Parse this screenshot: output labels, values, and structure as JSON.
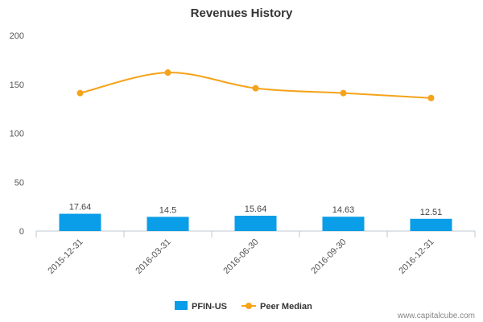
{
  "chart_data": {
    "type": "bar",
    "title": "Revenues History",
    "categories": [
      "2015-12-31",
      "2016-03-31",
      "2016-06-30",
      "2016-09-30",
      "2016-12-31"
    ],
    "series": [
      {
        "name": "PFIN-US",
        "type": "bar",
        "color": "#0a9de8",
        "values": [
          17.64,
          14.5,
          15.64,
          14.63,
          12.51
        ],
        "data_labels": [
          "17.64",
          "14.5",
          "15.64",
          "14.63",
          "12.51"
        ]
      },
      {
        "name": "Peer Median",
        "type": "line",
        "color": "#f5a31a",
        "values": [
          141,
          162,
          146,
          141,
          136
        ]
      }
    ],
    "ylim": [
      0,
      200
    ],
    "y_ticks": [
      "0",
      "50",
      "100",
      "150",
      "200"
    ],
    "grid": false,
    "legend": "bottom-center",
    "xlabel": "",
    "ylabel": ""
  },
  "credit": "www.capitalcube.com"
}
